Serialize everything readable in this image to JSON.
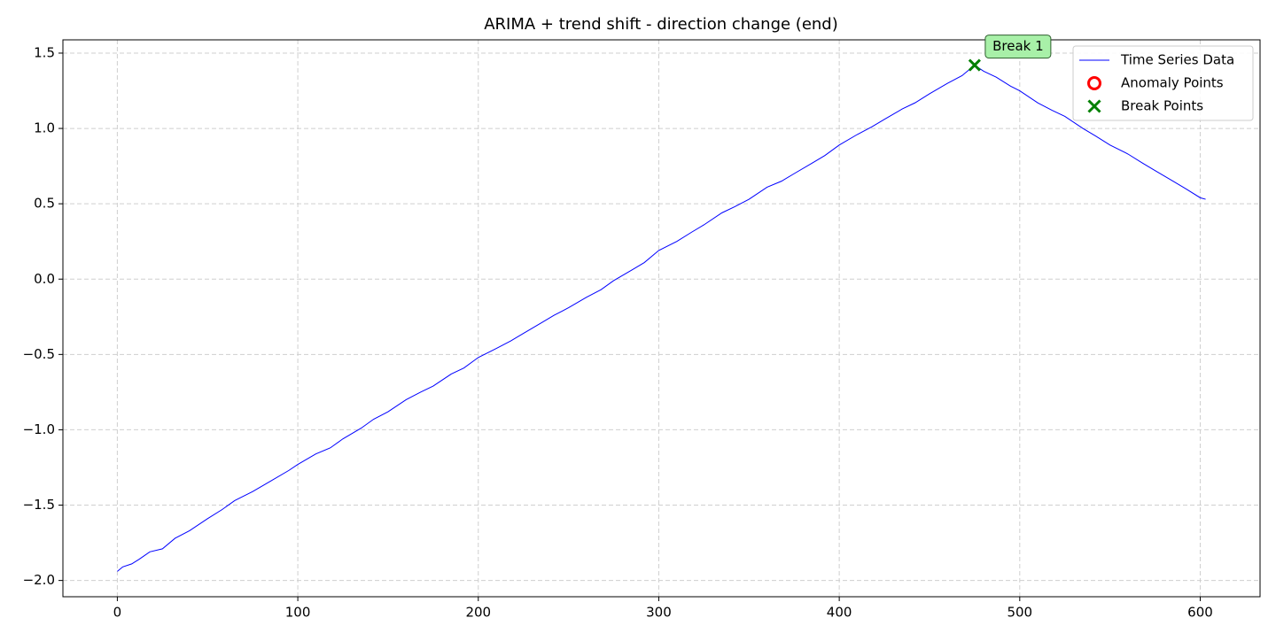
{
  "chart_data": {
    "type": "line",
    "title": "ARIMA + trend shift - direction change (end)",
    "series": [
      {
        "name": "Time Series Data",
        "color": "#0000ff",
        "kind": "line",
        "x": [
          0,
          3,
          8,
          12,
          18,
          25,
          32,
          40,
          50,
          58,
          65,
          75,
          85,
          95,
          100,
          110,
          118,
          125,
          135,
          142,
          150,
          160,
          168,
          175,
          185,
          192,
          200,
          210,
          218,
          225,
          235,
          242,
          250,
          260,
          268,
          275,
          285,
          292,
          300,
          310,
          318,
          325,
          335,
          342,
          350,
          360,
          368,
          375,
          385,
          392,
          400,
          410,
          418,
          425,
          435,
          442,
          450,
          460,
          468,
          475,
          480,
          487,
          495,
          500,
          510,
          518,
          525,
          535,
          542,
          550,
          560,
          568,
          575,
          585,
          592,
          600,
          603
        ],
        "values": [
          -1.94,
          -1.91,
          -1.89,
          -1.86,
          -1.81,
          -1.79,
          -1.72,
          -1.67,
          -1.59,
          -1.53,
          -1.47,
          -1.41,
          -1.34,
          -1.27,
          -1.23,
          -1.16,
          -1.12,
          -1.06,
          -0.99,
          -0.93,
          -0.88,
          -0.8,
          -0.75,
          -0.71,
          -0.63,
          -0.59,
          -0.52,
          -0.46,
          -0.41,
          -0.36,
          -0.29,
          -0.24,
          -0.19,
          -0.12,
          -0.07,
          -0.01,
          0.06,
          0.11,
          0.19,
          0.25,
          0.31,
          0.36,
          0.44,
          0.48,
          0.53,
          0.61,
          0.65,
          0.7,
          0.77,
          0.82,
          0.89,
          0.96,
          1.01,
          1.06,
          1.13,
          1.17,
          1.23,
          1.3,
          1.35,
          1.42,
          1.38,
          1.34,
          1.28,
          1.25,
          1.17,
          1.12,
          1.08,
          1.0,
          0.95,
          0.89,
          0.83,
          0.77,
          0.72,
          0.65,
          0.6,
          0.54,
          0.53
        ]
      },
      {
        "name": "Anomaly Points",
        "color": "#ff0000",
        "kind": "circle",
        "x": [],
        "values": []
      },
      {
        "name": "Break Points",
        "color": "#008000",
        "kind": "cross",
        "x": [
          475
        ],
        "values": [
          1.42
        ]
      }
    ],
    "annotations": [
      "Break 1"
    ],
    "xlim": [
      -30.15,
      633.15
    ],
    "ylim": [
      -2.108,
      1.588
    ],
    "xticks": [
      0,
      100,
      200,
      300,
      400,
      500,
      600
    ],
    "yticks": [
      {
        "value": -2.0,
        "label": "−2.0"
      },
      {
        "value": -1.5,
        "label": "−1.5"
      },
      {
        "value": -1.0,
        "label": "−1.0"
      },
      {
        "value": -0.5,
        "label": "−0.5"
      },
      {
        "value": 0.0,
        "label": "0.0"
      },
      0.5,
      {
        "value": 1.0,
        "label": "1.0"
      },
      1.5
    ],
    "grid": true,
    "legend": "upper-right"
  }
}
